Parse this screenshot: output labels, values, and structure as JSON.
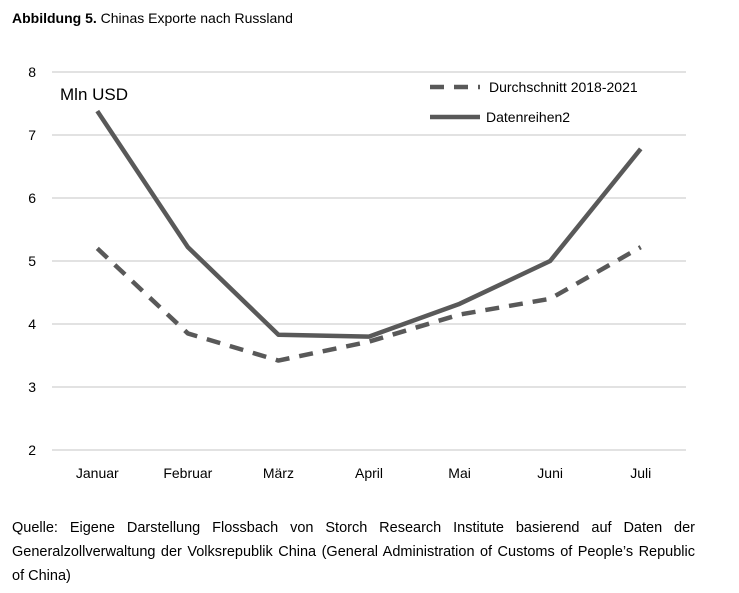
{
  "figure": {
    "label": "Abbildung 5.",
    "title": "Chinas Exporte nach Russland"
  },
  "chart_data": {
    "type": "line",
    "title": "Chinas Exporte nach Russland",
    "ylabel": "Mln USD",
    "xlabel": "",
    "categories": [
      "Januar",
      "Februar",
      "März",
      "April",
      "Mai",
      "Juni",
      "Juli"
    ],
    "ylim": [
      2,
      8
    ],
    "yticks": [
      2,
      3,
      4,
      5,
      6,
      7,
      8
    ],
    "grid": true,
    "legend_position": "top-right",
    "series": [
      {
        "name": "Durchschnitt 2018-2021",
        "style": "dashed",
        "color": "#595959",
        "values": [
          5.2,
          3.85,
          3.42,
          3.72,
          4.15,
          4.4,
          5.22
        ]
      },
      {
        "name": "Datenreihen2",
        "style": "solid",
        "color": "#595959",
        "values": [
          7.38,
          5.22,
          3.83,
          3.8,
          4.32,
          5.0,
          6.78
        ]
      }
    ]
  },
  "source": "Quelle: Eigene Darstellung Flossbach von Storch Research Institute basierend auf Daten der Generalzollverwaltung der Volksrepublik China (General Administration of Customs of People’s Republic of China)"
}
